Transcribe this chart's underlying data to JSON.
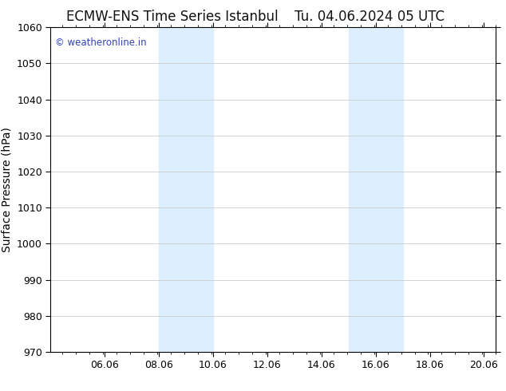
{
  "title_left": "ECMW-ENS Time Series Istanbul",
  "title_right": "Tu. 04.06.2024 05 UTC",
  "ylabel": "Surface Pressure (hPa)",
  "ylim": [
    970,
    1060
  ],
  "yticks": [
    970,
    980,
    990,
    1000,
    1010,
    1020,
    1030,
    1040,
    1050,
    1060
  ],
  "xlim": [
    4.06,
    20.5
  ],
  "xtick_positions": [
    6.06,
    8.06,
    10.06,
    12.06,
    14.06,
    16.06,
    18.06,
    20.06
  ],
  "xtick_labels": [
    "06.06",
    "08.06",
    "10.06",
    "12.06",
    "14.06",
    "16.06",
    "18.06",
    "20.06"
  ],
  "shaded_bands": [
    {
      "x_start": 8.06,
      "x_end": 10.06
    },
    {
      "x_start": 15.06,
      "x_end": 17.06
    }
  ],
  "shaded_color": "#ddeeff",
  "watermark_text": "© weatheronline.in",
  "watermark_color": "#3344bb",
  "background_color": "#ffffff",
  "plot_bg_color": "#ffffff",
  "grid_color": "#cccccc",
  "axis_color": "#000000",
  "title_fontsize": 12,
  "tick_fontsize": 9,
  "ylabel_fontsize": 10
}
